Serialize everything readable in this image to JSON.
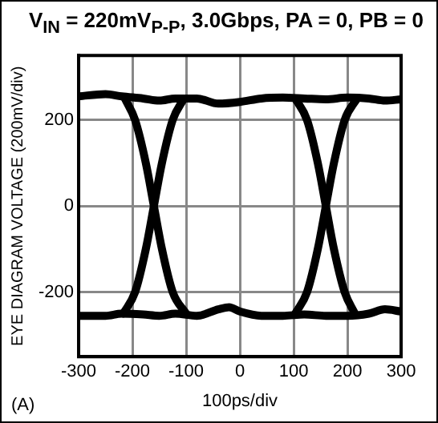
{
  "chart_data": {
    "type": "line",
    "title": "V$_{IN}$ = 220mV$_{P-P}$, 3.0Gbps, PA = 0, PB = 0",
    "xlabel": "100ps/div",
    "ylabel": "EYE DIAGRAM VOLTAGE (200mV/div)",
    "annotations": [
      "(A)"
    ],
    "xlim": [
      -300,
      300
    ],
    "xticks": [
      -300,
      -200,
      -100,
      0,
      100,
      200,
      300
    ],
    "ylim": [
      -350,
      350
    ],
    "yticks": [
      -200,
      0,
      200
    ],
    "grid": true,
    "legend": false,
    "marker": "none",
    "line_style": "solid",
    "series": [
      {
        "color": "#000000",
        "x": [
          -300,
          -250,
          -220,
          -180,
          -150,
          -120,
          -80,
          -40,
          0,
          40,
          80,
          120,
          160,
          200,
          240,
          270,
          300
        ],
        "values": [
          255,
          260,
          255,
          250,
          245,
          250,
          250,
          238,
          242,
          250,
          252,
          250,
          248,
          252,
          250,
          245,
          248
        ]
      },
      {
        "color": "#000000",
        "x": [
          -300,
          -250,
          -220,
          -180,
          -150,
          -120,
          -80,
          -40,
          -20,
          0,
          40,
          80,
          120,
          160,
          200,
          240,
          270,
          300
        ],
        "values": [
          -255,
          -255,
          -250,
          -252,
          -255,
          -250,
          -255,
          -240,
          -235,
          -245,
          -255,
          -255,
          -252,
          -255,
          -255,
          -250,
          -240,
          -245
        ]
      },
      {
        "color": "#000000",
        "x": [
          -214,
          -195,
          -175,
          -160,
          -145,
          -125,
          -100
        ],
        "values": [
          250,
          200,
          100,
          0,
          -100,
          -200,
          -250
        ]
      },
      {
        "color": "#000000",
        "x": [
          -217,
          -195,
          -175,
          -160,
          -145,
          -125,
          -104
        ],
        "values": [
          -250,
          -200,
          -100,
          0,
          100,
          200,
          250
        ]
      },
      {
        "color": "#000000",
        "x": [
          103,
          125,
          145,
          160,
          175,
          195,
          214
        ],
        "values": [
          250,
          200,
          100,
          0,
          -100,
          -200,
          -250
        ]
      },
      {
        "color": "#000000",
        "x": [
          103,
          125,
          145,
          160,
          175,
          195,
          218
        ],
        "values": [
          -250,
          -200,
          -100,
          0,
          100,
          200,
          250
        ]
      }
    ]
  }
}
